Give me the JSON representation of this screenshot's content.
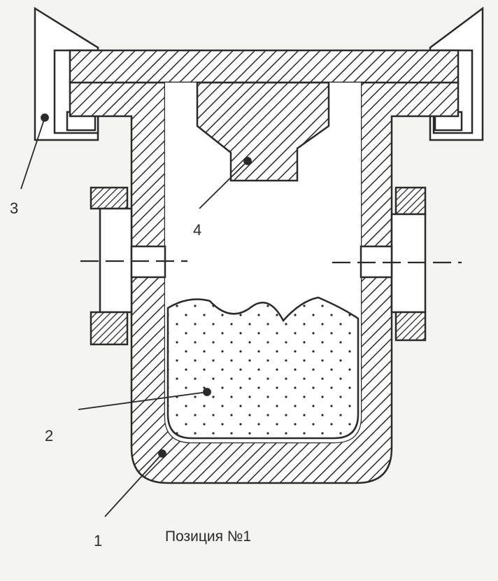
{
  "diagram": {
    "labels": {
      "part_1": "1",
      "part_2": "2",
      "part_3": "3",
      "part_4": "4"
    },
    "caption": "Позиция №1"
  },
  "colors": {
    "ink": "#2a2a2a",
    "paper": "#f4f4f1"
  }
}
